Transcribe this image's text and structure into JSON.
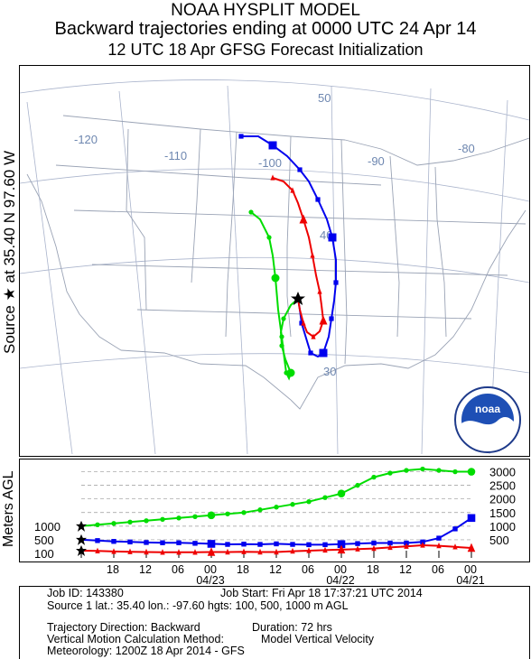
{
  "header": {
    "title": "NOAA HYSPLIT MODEL",
    "line2": "Backward trajectories ending at 0000 UTC 24 Apr 14",
    "line3": "12 UTC 18 Apr    GFSG  Forecast Initialization"
  },
  "source_label": "Source ★ at  35.40 N  97.60 W",
  "map": {
    "lon_labels": [
      "-120",
      "-110",
      "-100",
      "-90",
      "-80"
    ],
    "lat_labels": [
      "50",
      "40",
      "30"
    ],
    "logo_text": "noaa"
  },
  "chart_data": {
    "type": "line",
    "title": "",
    "ylabel": "Meters AGL",
    "yticks_right": [
      "3000",
      "2500",
      "2000",
      "1500",
      "1000",
      "500"
    ],
    "yticks_left": [
      "1000",
      "500",
      "100"
    ],
    "ylim": [
      0,
      3250
    ],
    "x_tick_labels": [
      "18",
      "12",
      "06",
      "00",
      "18",
      "12",
      "06",
      "00",
      "18",
      "12",
      "06",
      "00"
    ],
    "x_date_labels": [
      "04/23",
      "04/22",
      "04/21"
    ],
    "x_hours_back": [
      0,
      72
    ],
    "grid": true,
    "series": [
      {
        "color": "#00dd00",
        "marker": "circle",
        "values": [
          {
            "h": 0,
            "v": 1000
          },
          {
            "h": 3,
            "v": 1050
          },
          {
            "h": 6,
            "v": 1100
          },
          {
            "h": 9,
            "v": 1150
          },
          {
            "h": 12,
            "v": 1200
          },
          {
            "h": 15,
            "v": 1250
          },
          {
            "h": 18,
            "v": 1300
          },
          {
            "h": 21,
            "v": 1350
          },
          {
            "h": 24,
            "v": 1400
          },
          {
            "h": 27,
            "v": 1450
          },
          {
            "h": 30,
            "v": 1500
          },
          {
            "h": 33,
            "v": 1600
          },
          {
            "h": 36,
            "v": 1700
          },
          {
            "h": 39,
            "v": 1800
          },
          {
            "h": 42,
            "v": 1900
          },
          {
            "h": 45,
            "v": 2050
          },
          {
            "h": 48,
            "v": 2200
          },
          {
            "h": 51,
            "v": 2500
          },
          {
            "h": 54,
            "v": 2800
          },
          {
            "h": 57,
            "v": 2950
          },
          {
            "h": 60,
            "v": 3050
          },
          {
            "h": 63,
            "v": 3100
          },
          {
            "h": 66,
            "v": 3050
          },
          {
            "h": 69,
            "v": 3000
          },
          {
            "h": 72,
            "v": 3000
          }
        ]
      },
      {
        "color": "#0000ee",
        "marker": "square",
        "values": [
          {
            "h": 0,
            "v": 500
          },
          {
            "h": 3,
            "v": 470
          },
          {
            "h": 6,
            "v": 440
          },
          {
            "h": 9,
            "v": 420
          },
          {
            "h": 12,
            "v": 400
          },
          {
            "h": 15,
            "v": 390
          },
          {
            "h": 18,
            "v": 390
          },
          {
            "h": 21,
            "v": 370
          },
          {
            "h": 24,
            "v": 350
          },
          {
            "h": 27,
            "v": 330
          },
          {
            "h": 30,
            "v": 340
          },
          {
            "h": 33,
            "v": 330
          },
          {
            "h": 36,
            "v": 350
          },
          {
            "h": 39,
            "v": 330
          },
          {
            "h": 42,
            "v": 320
          },
          {
            "h": 45,
            "v": 320
          },
          {
            "h": 48,
            "v": 340
          },
          {
            "h": 51,
            "v": 360
          },
          {
            "h": 54,
            "v": 380
          },
          {
            "h": 57,
            "v": 380
          },
          {
            "h": 60,
            "v": 380
          },
          {
            "h": 63,
            "v": 420
          },
          {
            "h": 66,
            "v": 560
          },
          {
            "h": 69,
            "v": 900
          },
          {
            "h": 72,
            "v": 1300
          }
        ]
      },
      {
        "color": "#ee0000",
        "marker": "triangle",
        "values": [
          {
            "h": 0,
            "v": 100
          },
          {
            "h": 3,
            "v": 90
          },
          {
            "h": 6,
            "v": 70
          },
          {
            "h": 9,
            "v": 60
          },
          {
            "h": 12,
            "v": 50
          },
          {
            "h": 15,
            "v": 40
          },
          {
            "h": 18,
            "v": 40
          },
          {
            "h": 21,
            "v": 40
          },
          {
            "h": 24,
            "v": 50
          },
          {
            "h": 27,
            "v": 50
          },
          {
            "h": 30,
            "v": 60
          },
          {
            "h": 33,
            "v": 50
          },
          {
            "h": 36,
            "v": 50
          },
          {
            "h": 39,
            "v": 80
          },
          {
            "h": 42,
            "v": 100
          },
          {
            "h": 45,
            "v": 120
          },
          {
            "h": 48,
            "v": 140
          },
          {
            "h": 51,
            "v": 160
          },
          {
            "h": 54,
            "v": 180
          },
          {
            "h": 57,
            "v": 220
          },
          {
            "h": 60,
            "v": 260
          },
          {
            "h": 63,
            "v": 300
          },
          {
            "h": 66,
            "v": 280
          },
          {
            "h": 69,
            "v": 240
          },
          {
            "h": 72,
            "v": 200
          }
        ]
      }
    ]
  },
  "info": {
    "job_id": "Job ID: 143380",
    "job_start": "Job Start: Fri Apr 18 17:37:21 UTC 2014",
    "source1": "Source 1 lat.: 35.40  lon.: -97.60  hgts: 100, 500, 1000 m AGL",
    "direction": "Trajectory Direction: Backward",
    "duration": "Duration: 72 hrs",
    "vertical_label": "Vertical Motion Calculation Method:",
    "vertical_value": "Model Vertical Velocity",
    "meteorology": "Meteorology: 1200Z 18 Apr 2014 - GFS"
  },
  "colors": {
    "green": "#00dd00",
    "blue": "#0000ee",
    "red": "#ee0000",
    "grid": "#aab4cc"
  }
}
